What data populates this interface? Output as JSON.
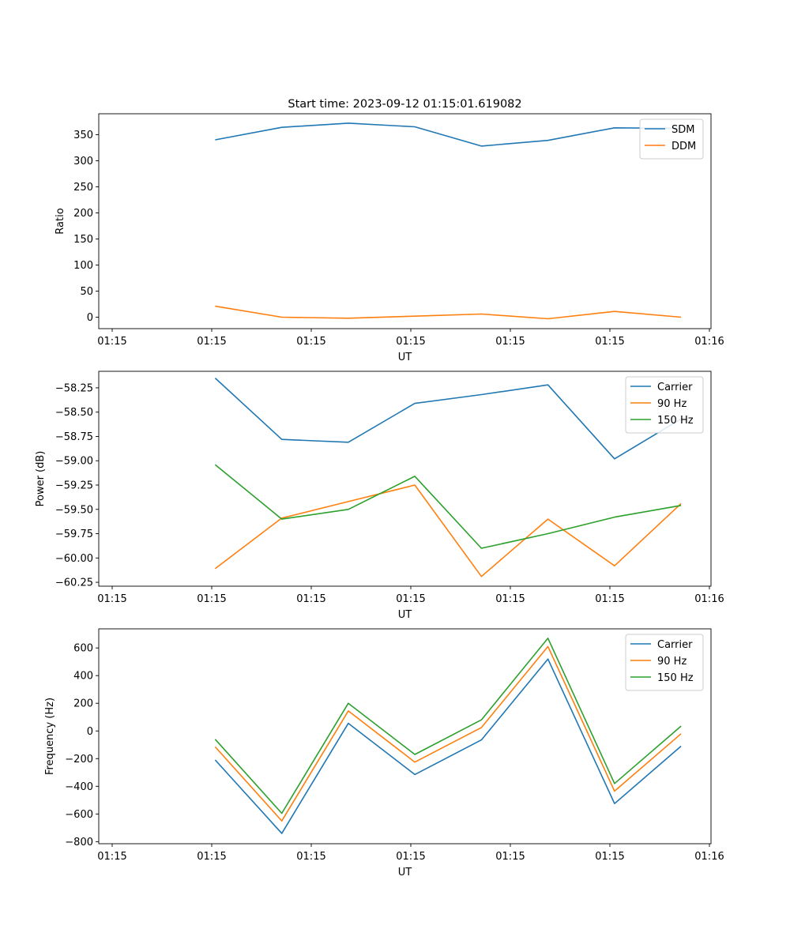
{
  "figure_title": "Start time: 2023-09-12 01:15:01.619082",
  "colors": {
    "blue": "#1f77b4",
    "orange": "#ff7f0e",
    "green": "#2ca02c"
  },
  "chart_data": [
    {
      "type": "line",
      "id": "ratio",
      "title": "Start time: 2023-09-12 01:15:01.619082",
      "xlabel": "UT",
      "ylabel": "Ratio",
      "xtick_labels": [
        "01:15",
        "01:15",
        "01:15",
        "01:15",
        "01:15",
        "01:15",
        "01:16"
      ],
      "x": [
        1,
        2,
        3,
        4,
        5,
        6,
        7,
        8
      ],
      "xlim": [
        -0.75,
        8.45
      ],
      "ylim": [
        -22,
        390
      ],
      "yticks": [
        0,
        50,
        100,
        150,
        200,
        250,
        300,
        350
      ],
      "ytick_labels": [
        "0",
        "50",
        "100",
        "150",
        "200",
        "250",
        "300",
        "350"
      ],
      "legend_position": "upper right",
      "series": [
        {
          "name": "SDM",
          "color": "#1f77b4",
          "values": [
            340,
            364,
            372,
            365,
            328,
            339,
            363,
            362
          ]
        },
        {
          "name": "DDM",
          "color": "#ff7f0e",
          "values": [
            21,
            0,
            -2,
            2,
            6,
            -3,
            11,
            0
          ]
        }
      ]
    },
    {
      "type": "line",
      "id": "power",
      "xlabel": "UT",
      "ylabel": "Power (dB)",
      "xtick_labels": [
        "01:15",
        "01:15",
        "01:15",
        "01:15",
        "01:15",
        "01:15",
        "01:16"
      ],
      "x": [
        1,
        2,
        3,
        4,
        5,
        6,
        7,
        8
      ],
      "xlim": [
        -0.75,
        8.45
      ],
      "ylim": [
        -60.29,
        -58.08
      ],
      "yticks": [
        -60.25,
        -60.0,
        -59.75,
        -59.5,
        -59.25,
        -59.0,
        -58.75,
        -58.5,
        -58.25
      ],
      "ytick_labels": [
        "−60.25",
        "−60.00",
        "−59.75",
        "−59.50",
        "−59.25",
        "−59.00",
        "−58.75",
        "−58.50",
        "−58.25"
      ],
      "legend_position": "upper right",
      "series": [
        {
          "name": "Carrier",
          "color": "#1f77b4",
          "values": [
            -58.15,
            -58.78,
            -58.81,
            -58.41,
            -58.32,
            -58.22,
            -58.98,
            -58.57
          ]
        },
        {
          "name": "90 Hz",
          "color": "#ff7f0e",
          "values": [
            -60.11,
            -59.59,
            -59.42,
            -59.25,
            -60.19,
            -59.6,
            -60.08,
            -59.44
          ]
        },
        {
          "name": "150 Hz",
          "color": "#2ca02c",
          "values": [
            -59.04,
            -59.6,
            -59.5,
            -59.16,
            -59.9,
            -59.75,
            -59.58,
            -59.46
          ]
        }
      ]
    },
    {
      "type": "line",
      "id": "frequency",
      "xlabel": "UT",
      "ylabel": "Frequency (Hz)",
      "xtick_labels": [
        "01:15",
        "01:15",
        "01:15",
        "01:15",
        "01:15",
        "01:15",
        "01:16"
      ],
      "x": [
        1,
        2,
        3,
        4,
        5,
        6,
        7,
        8
      ],
      "xlim": [
        -0.75,
        8.45
      ],
      "ylim": [
        -815,
        738
      ],
      "yticks": [
        -800,
        -600,
        -400,
        -200,
        0,
        200,
        400,
        600
      ],
      "ytick_labels": [
        "−800",
        "−600",
        "−400",
        "−200",
        "0",
        "200",
        "400",
        "600"
      ],
      "legend_position": "upper right",
      "series": [
        {
          "name": "Carrier",
          "color": "#1f77b4",
          "values": [
            -210,
            -740,
            55,
            -315,
            -65,
            520,
            -525,
            -110
          ]
        },
        {
          "name": "90 Hz",
          "color": "#ff7f0e",
          "values": [
            -115,
            -650,
            145,
            -225,
            25,
            610,
            -435,
            -20
          ]
        },
        {
          "name": "150 Hz",
          "color": "#2ca02c",
          "values": [
            -60,
            -595,
            200,
            -170,
            80,
            670,
            -380,
            35
          ]
        }
      ]
    }
  ]
}
